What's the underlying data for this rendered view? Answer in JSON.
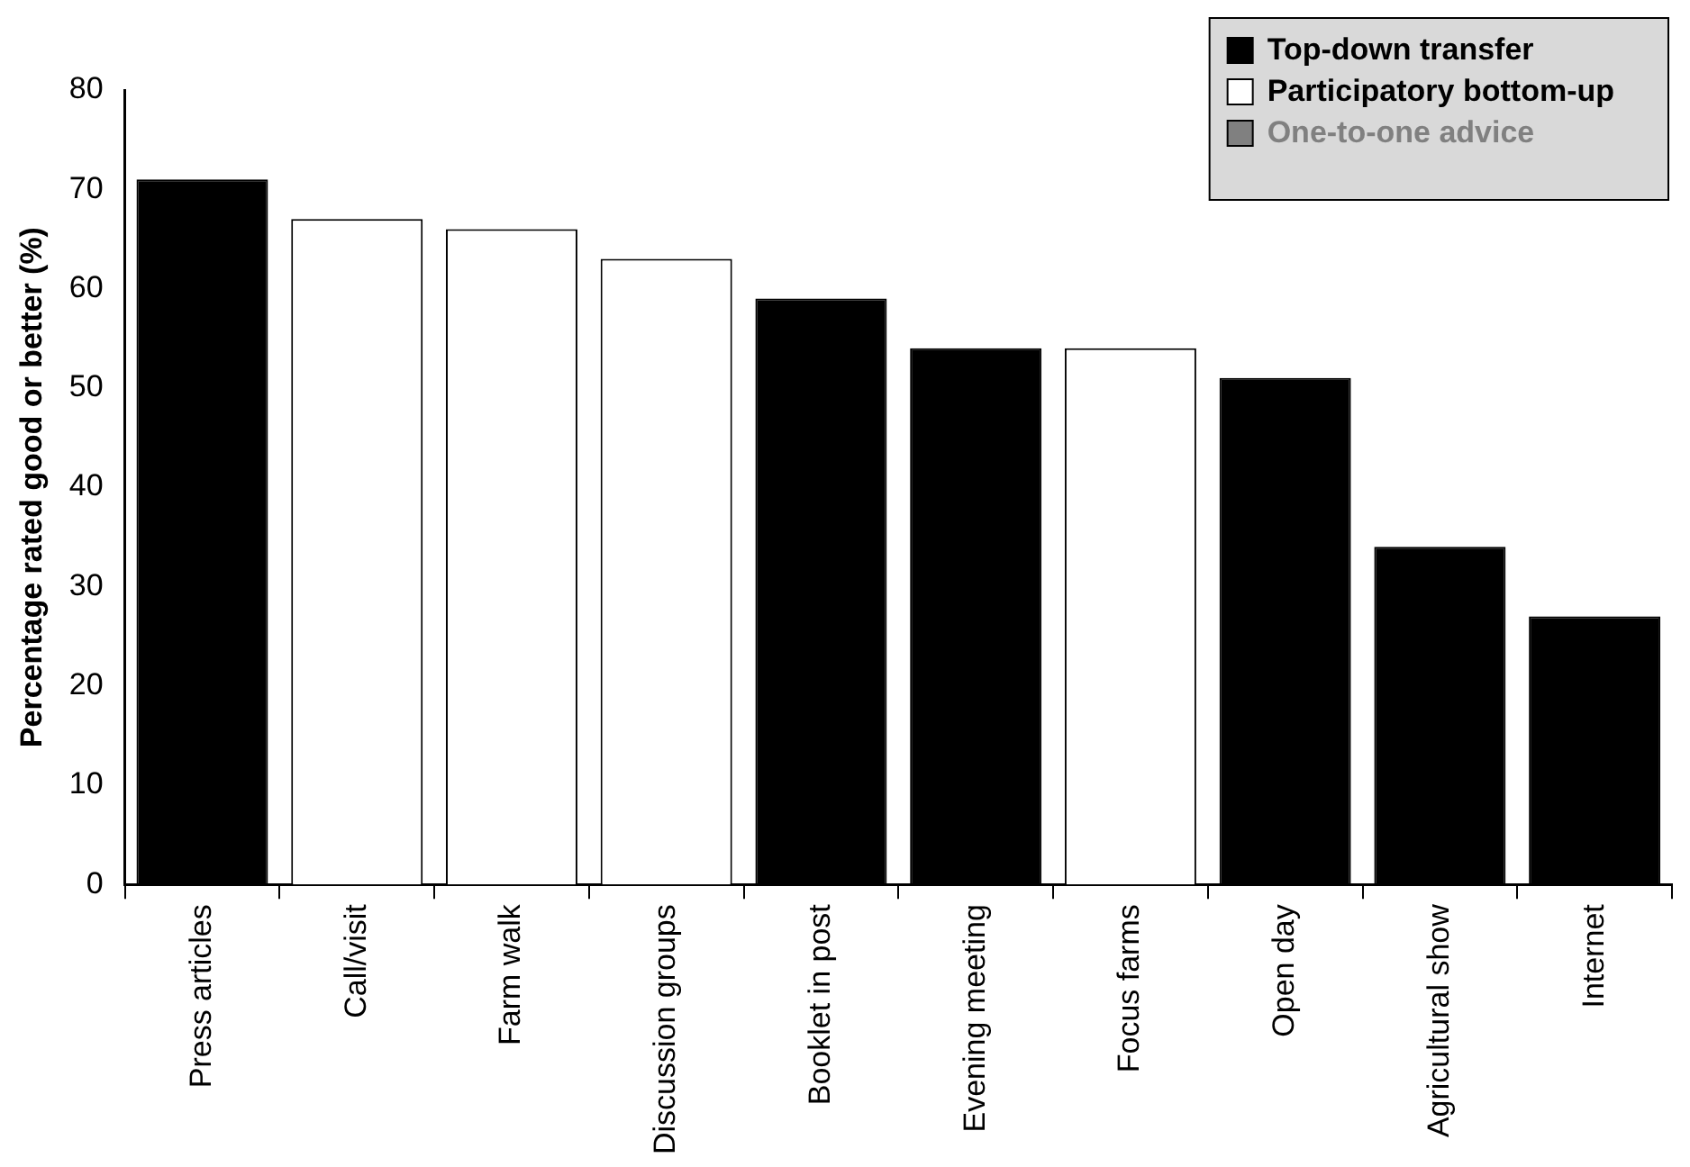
{
  "chart_data": {
    "type": "bar",
    "ylabel": "Percentage rated good or better (%)",
    "categories": [
      "Press articles",
      "Call/visit",
      "Farm walk",
      "Discussion groups",
      "Booklet in post",
      "Evening meeting",
      "Focus farms",
      "Open day",
      "Agricultural show",
      "Internet"
    ],
    "series": [
      {
        "name": "Top-down transfer",
        "color": "#000000",
        "values": [
          71,
          null,
          null,
          null,
          59,
          54,
          null,
          51,
          34,
          27
        ]
      },
      {
        "name": "Participatory bottom-up",
        "color": "#ffffff",
        "values": [
          null,
          67,
          66,
          63,
          null,
          null,
          54,
          null,
          null,
          null
        ]
      },
      {
        "name": "One-to-one advice",
        "color": "#808080",
        "values": [
          null,
          null,
          null,
          null,
          null,
          null,
          null,
          null,
          null,
          null
        ]
      }
    ],
    "ylim": [
      0,
      80
    ],
    "yticks": [
      0,
      10,
      20,
      30,
      40,
      50,
      60,
      70,
      80
    ],
    "grid": false,
    "legend": "top right"
  }
}
